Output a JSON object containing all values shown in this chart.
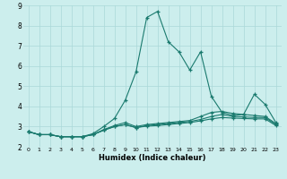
{
  "xlabel": "Humidex (Indice chaleur)",
  "ylabel": "",
  "xlim": [
    -0.5,
    23.5
  ],
  "ylim": [
    2,
    9
  ],
  "yticks": [
    2,
    3,
    4,
    5,
    6,
    7,
    8,
    9
  ],
  "xticks": [
    0,
    1,
    2,
    3,
    4,
    5,
    6,
    7,
    8,
    9,
    10,
    11,
    12,
    13,
    14,
    15,
    16,
    17,
    18,
    19,
    20,
    21,
    22,
    23
  ],
  "background_color": "#cceeed",
  "grid_color": "#aad8d8",
  "line_color": "#1a7a6e",
  "lines": [
    {
      "x": [
        0,
        1,
        2,
        3,
        4,
        5,
        6,
        7,
        8,
        9,
        10,
        11,
        12,
        13,
        14,
        15,
        16,
        17,
        18,
        19,
        20,
        21,
        22,
        23
      ],
      "y": [
        2.75,
        2.6,
        2.6,
        2.5,
        2.5,
        2.5,
        2.65,
        3.0,
        3.4,
        4.3,
        5.7,
        8.4,
        8.7,
        7.2,
        6.7,
        5.8,
        6.7,
        4.5,
        3.7,
        3.55,
        3.6,
        4.6,
        4.1,
        3.2
      ]
    },
    {
      "x": [
        0,
        1,
        2,
        3,
        4,
        5,
        6,
        7,
        8,
        9,
        10,
        11,
        12,
        13,
        14,
        15,
        16,
        17,
        18,
        19,
        20,
        21,
        22,
        23
      ],
      "y": [
        2.75,
        2.6,
        2.6,
        2.5,
        2.5,
        2.5,
        2.6,
        2.85,
        3.05,
        3.2,
        3.0,
        3.1,
        3.15,
        3.2,
        3.25,
        3.3,
        3.5,
        3.7,
        3.75,
        3.65,
        3.6,
        3.55,
        3.5,
        3.15
      ]
    },
    {
      "x": [
        0,
        1,
        2,
        3,
        4,
        5,
        6,
        7,
        8,
        9,
        10,
        11,
        12,
        13,
        14,
        15,
        16,
        17,
        18,
        19,
        20,
        21,
        22,
        23
      ],
      "y": [
        2.75,
        2.6,
        2.6,
        2.5,
        2.5,
        2.5,
        2.6,
        2.82,
        3.0,
        3.1,
        2.95,
        3.05,
        3.1,
        3.15,
        3.2,
        3.25,
        3.35,
        3.5,
        3.6,
        3.5,
        3.48,
        3.45,
        3.45,
        3.1
      ]
    },
    {
      "x": [
        0,
        1,
        2,
        3,
        4,
        5,
        6,
        7,
        8,
        9,
        10,
        11,
        12,
        13,
        14,
        15,
        16,
        17,
        18,
        19,
        20,
        21,
        22,
        23
      ],
      "y": [
        2.75,
        2.6,
        2.6,
        2.5,
        2.5,
        2.5,
        2.6,
        2.82,
        3.0,
        3.1,
        2.95,
        3.02,
        3.05,
        3.1,
        3.15,
        3.2,
        3.28,
        3.38,
        3.45,
        3.42,
        3.4,
        3.38,
        3.38,
        3.05
      ]
    }
  ]
}
